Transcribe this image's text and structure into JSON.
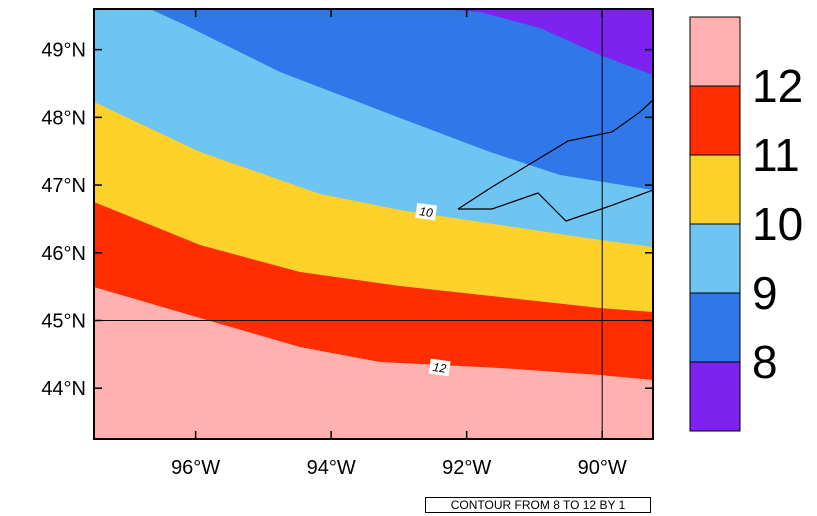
{
  "map": {
    "lon_range": [
      -97.5,
      -89.25
    ],
    "lat_range": [
      43.25,
      49.6
    ],
    "x_ticks": [
      {
        "lon": -96,
        "label": "96°W"
      },
      {
        "lon": -94,
        "label": "94°W"
      },
      {
        "lon": -92,
        "label": "92°W"
      },
      {
        "lon": -90,
        "label": "90°W"
      }
    ],
    "y_ticks": [
      {
        "lat": 49,
        "label": "49°N"
      },
      {
        "lat": 48,
        "label": "48°N"
      },
      {
        "lat": 47,
        "label": "47°N"
      },
      {
        "lat": 46,
        "label": "46°N"
      },
      {
        "lat": 45,
        "label": "45°N"
      },
      {
        "lat": 44,
        "label": "44°N"
      }
    ],
    "grid_lines": {
      "lon": -90,
      "lat": 45
    },
    "contour_labels": [
      {
        "text": "10",
        "lon": -92.6,
        "lat": 46.6
      },
      {
        "text": "12",
        "lon": -92.4,
        "lat": 44.3
      }
    ]
  },
  "legend": {
    "levels": [
      {
        "color": "#ffb0b0"
      },
      {
        "label": "12",
        "color": "#ff2d00"
      },
      {
        "label": "11",
        "color": "#ffd22b"
      },
      {
        "label": "10",
        "color": "#6fc5f2"
      },
      {
        "label": "9",
        "color": "#3078ea"
      },
      {
        "label": "8",
        "color": "#7e22f0"
      }
    ]
  },
  "footer": {
    "text": "CONTOUR FROM 8 TO 12 BY 1"
  }
}
